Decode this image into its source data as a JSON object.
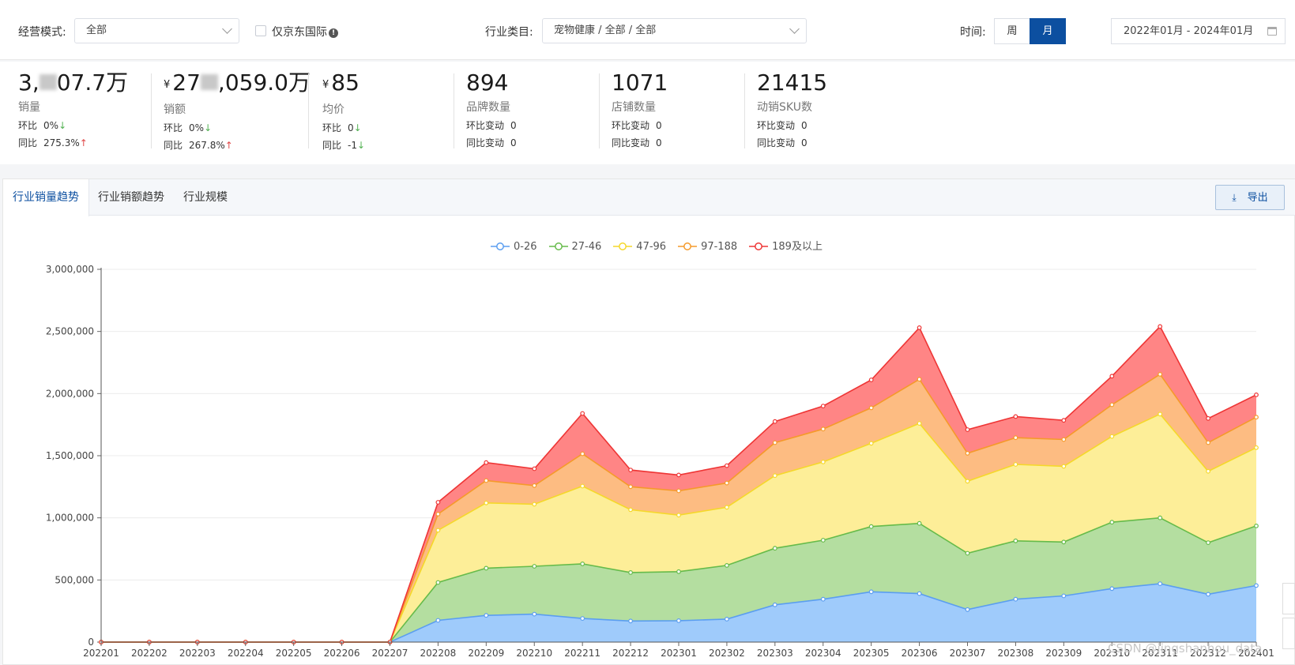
{
  "filters": {
    "mode_label": "经营模式:",
    "mode_value": "全部",
    "jd_intl_label": "仅京东国际",
    "category_label": "行业类目:",
    "category_value": "宠物健康 / 全部 / 全部",
    "time_label": "时间:",
    "week_label": "周",
    "month_label": "月",
    "date_range": "2022年01月 - 2024年01月"
  },
  "stats": [
    {
      "value_pre": "3,",
      "value_post": "07.7万",
      "currency": "",
      "name": "销量",
      "r1_label": "环比",
      "r1_value": "0%",
      "r1_arrow": "↓",
      "r2_label": "同比",
      "r2_value": "275.3%",
      "r2_arrow": "↑"
    },
    {
      "value_pre": "27",
      "value_post": ",059.0万",
      "currency": "¥",
      "name": "销额",
      "r1_label": "环比",
      "r1_value": "0%",
      "r1_arrow": "↓",
      "r2_label": "同比",
      "r2_value": "267.8%",
      "r2_arrow": "↑"
    },
    {
      "value_pre": "85",
      "value_post": "",
      "currency": "¥",
      "name": "均价",
      "r1_label": "环比",
      "r1_value": "0",
      "r1_arrow": "↓",
      "r2_label": "同比",
      "r2_value": "-1",
      "r2_arrow": "↓"
    },
    {
      "value_pre": "894",
      "value_post": "",
      "currency": "",
      "name": "品牌数量",
      "r1_label": "环比变动",
      "r1_value": "0",
      "r1_arrow": "",
      "r2_label": "同比变动",
      "r2_value": "0",
      "r2_arrow": ""
    },
    {
      "value_pre": "1071",
      "value_post": "",
      "currency": "",
      "name": "店铺数量",
      "r1_label": "环比变动",
      "r1_value": "0",
      "r1_arrow": "",
      "r2_label": "同比变动",
      "r2_value": "0",
      "r2_arrow": ""
    },
    {
      "value_pre": "21415",
      "value_post": "",
      "currency": "",
      "name": "动销SKU数",
      "r1_label": "环比变动",
      "r1_value": "0",
      "r1_arrow": "",
      "r2_label": "同比变动",
      "r2_value": "0",
      "r2_arrow": ""
    }
  ],
  "tabs": [
    "行业销量趋势",
    "行业销额趋势",
    "行业规模"
  ],
  "export_label": "导出",
  "export_icon": "download-icon",
  "watermark": "CSDN @jingshanhou_data",
  "colors": {
    "accent": "#0c4fa0",
    "s0": "#5b9ef0",
    "s1": "#66bb4a",
    "s2": "#f5d82a",
    "s3": "#f59a2a",
    "s4": "#ee3535"
  },
  "chart_data": {
    "type": "area",
    "stacked": true,
    "title": "",
    "xlabel": "",
    "ylabel": "",
    "ylim": [
      0,
      3000000
    ],
    "yticks": [
      "0",
      "500,000",
      "1,000,000",
      "1,500,000",
      "2,000,000",
      "2,500,000",
      "3,000,000"
    ],
    "legend_position": "top-center",
    "x": [
      "202201",
      "202202",
      "202203",
      "202204",
      "202205",
      "202206",
      "202207",
      "202208",
      "202209",
      "202210",
      "202211",
      "202212",
      "202301",
      "202302",
      "202303",
      "202304",
      "202305",
      "202306",
      "202307",
      "202308",
      "202309",
      "202310",
      "202311",
      "202312",
      "202401"
    ],
    "series": [
      {
        "name": "0-26",
        "values": [
          0,
          0,
          0,
          0,
          0,
          0,
          0,
          175000,
          215000,
          225000,
          190000,
          170000,
          172000,
          185000,
          300000,
          345000,
          405000,
          390000,
          262000,
          345000,
          372000,
          430000,
          470000,
          385000,
          455000
        ]
      },
      {
        "name": "27-46",
        "values": [
          0,
          0,
          0,
          0,
          0,
          0,
          0,
          305000,
          380000,
          385000,
          440000,
          390000,
          395000,
          432000,
          455000,
          475000,
          525000,
          565000,
          453000,
          470000,
          433000,
          535000,
          530000,
          415000,
          480000
        ]
      },
      {
        "name": "47-96",
        "values": [
          0,
          0,
          0,
          0,
          0,
          0,
          0,
          420000,
          525000,
          500000,
          625000,
          505000,
          455000,
          468000,
          585000,
          630000,
          670000,
          805000,
          580000,
          615000,
          610000,
          690000,
          835000,
          575000,
          630000
        ]
      },
      {
        "name": "97-188",
        "values": [
          0,
          0,
          0,
          0,
          0,
          0,
          0,
          130000,
          180000,
          150000,
          260000,
          185000,
          195000,
          195000,
          265000,
          265000,
          285000,
          355000,
          225000,
          215000,
          215000,
          255000,
          320000,
          230000,
          245000
        ]
      },
      {
        "name": "189及以上",
        "values": [
          0,
          0,
          0,
          0,
          0,
          0,
          0,
          95000,
          145000,
          135000,
          325000,
          135000,
          128000,
          140000,
          170000,
          185000,
          225000,
          415000,
          190000,
          170000,
          155000,
          230000,
          385000,
          195000,
          180000
        ]
      }
    ]
  }
}
